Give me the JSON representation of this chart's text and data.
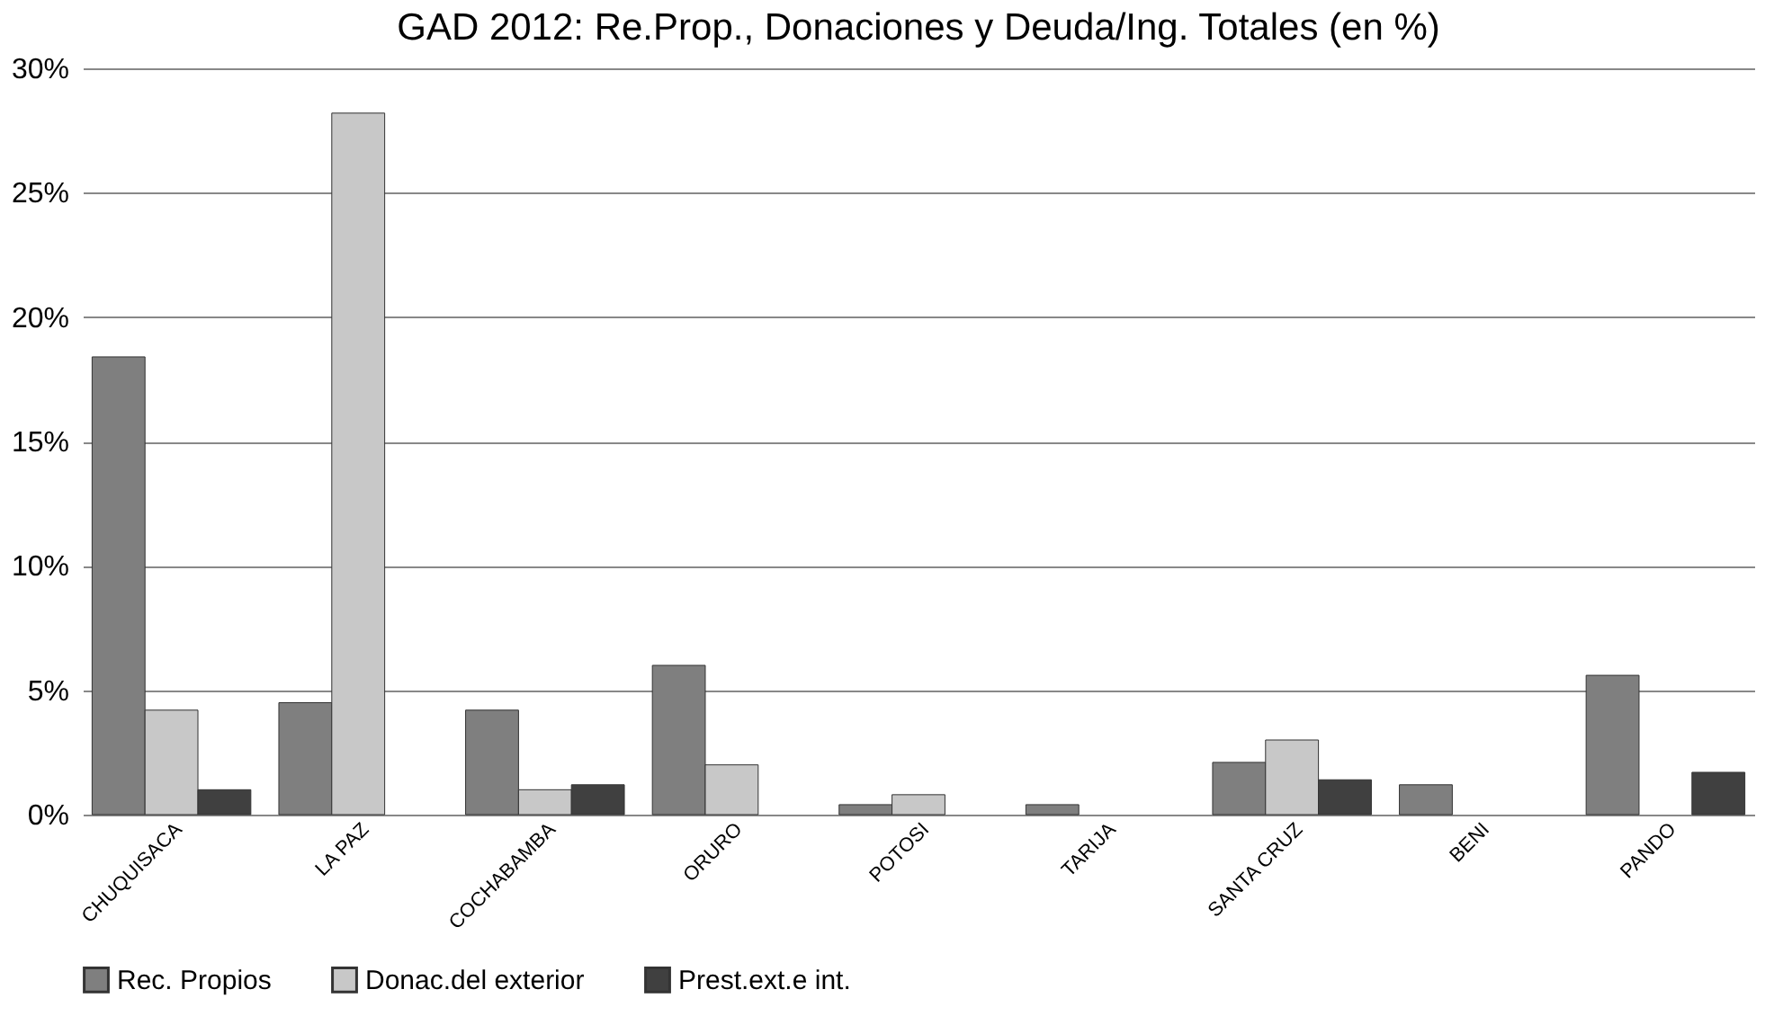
{
  "chart_data": {
    "type": "bar",
    "title": "GAD 2012:  Re.Prop., Donaciones y Deuda/Ing. Totales (en %)",
    "categories": [
      "CHUQUISACA",
      "LA PAZ",
      "COCHABAMBA",
      "ORURO",
      "POTOSI",
      "TARIJA",
      "SANTA CRUZ",
      "BENI",
      "PANDO"
    ],
    "series": [
      {
        "name": "Rec. Propios",
        "color": "#7f7f7f",
        "values": [
          18.4,
          4.5,
          4.2,
          6.0,
          0.4,
          0.4,
          2.1,
          1.2,
          5.6
        ]
      },
      {
        "name": "Donac.del exterior",
        "color": "#c8c8c8",
        "values": [
          4.2,
          28.2,
          1.0,
          2.0,
          0.8,
          null,
          3.0,
          null,
          null
        ]
      },
      {
        "name": "Prest.ext.e int.",
        "color": "#404040",
        "values": [
          1.0,
          null,
          1.2,
          null,
          null,
          null,
          1.4,
          null,
          1.7
        ]
      }
    ],
    "ylim": [
      0,
      30
    ],
    "yticks": [
      {
        "value": 0,
        "label": "0%"
      },
      {
        "value": 5,
        "label": "5%"
      },
      {
        "value": 10,
        "label": "10%"
      },
      {
        "value": 15,
        "label": "15%"
      },
      {
        "value": 20,
        "label": "20%"
      },
      {
        "value": 25,
        "label": "25%"
      },
      {
        "value": 30,
        "label": "30%"
      }
    ],
    "grid": "y",
    "legend": "bottom"
  }
}
